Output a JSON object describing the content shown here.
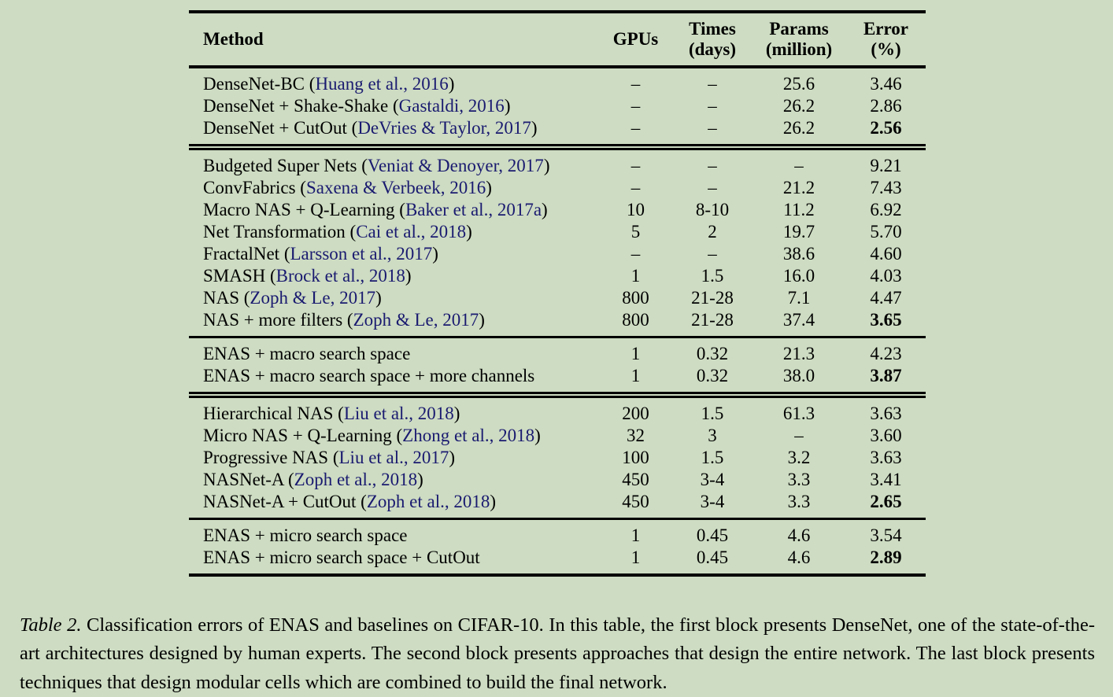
{
  "page": {
    "background_color": "#cddcc2",
    "rule_color": "#000000",
    "citation_color": "#1a1a70"
  },
  "table": {
    "header": {
      "method": "Method",
      "gpus": "GPUs",
      "times_line1": "Times",
      "times_line2": "(days)",
      "params_line1": "Params",
      "params_line2": "(million)",
      "error_line1": "Error",
      "error_line2": "(%)"
    },
    "blocks": [
      {
        "name": "densenet-human-designed",
        "rule_above": "none",
        "rows": [
          {
            "method_prefix": "DenseNet-BC (",
            "citation": "Huang et al., 2016",
            "method_suffix": ")",
            "gpus": "–",
            "times": "–",
            "params": "25.6",
            "error": "3.46",
            "error_bold": false
          },
          {
            "method_prefix": "DenseNet + Shake-Shake (",
            "citation": "Gastaldi, 2016",
            "method_suffix": ")",
            "gpus": "–",
            "times": "–",
            "params": "26.2",
            "error": "2.86",
            "error_bold": false
          },
          {
            "method_prefix": "DenseNet + CutOut (",
            "citation": "DeVries & Taylor, 2017",
            "method_suffix": ")",
            "gpus": "–",
            "times": "–",
            "params": "26.2",
            "error": "2.56",
            "error_bold": true
          }
        ]
      },
      {
        "name": "entire-network-design",
        "rule_above": "double",
        "rows": [
          {
            "method_prefix": "Budgeted Super Nets (",
            "citation": "Veniat & Denoyer, 2017",
            "method_suffix": ")",
            "gpus": "–",
            "times": "–",
            "params": "–",
            "error": "9.21",
            "error_bold": false
          },
          {
            "method_prefix": "ConvFabrics (",
            "citation": "Saxena & Verbeek, 2016",
            "method_suffix": ")",
            "gpus": "–",
            "times": "–",
            "params": "21.2",
            "error": "7.43",
            "error_bold": false
          },
          {
            "method_prefix": "Macro NAS + Q-Learning (",
            "citation": "Baker et al., 2017a",
            "method_suffix": ")",
            "gpus": "10",
            "times": "8-10",
            "params": "11.2",
            "error": "6.92",
            "error_bold": false
          },
          {
            "method_prefix": "Net Transformation (",
            "citation": "Cai et al., 2018",
            "method_suffix": ")",
            "gpus": "5",
            "times": "2",
            "params": "19.7",
            "error": "5.70",
            "error_bold": false
          },
          {
            "method_prefix": "FractalNet (",
            "citation": "Larsson et al., 2017",
            "method_suffix": ")",
            "gpus": "–",
            "times": "–",
            "params": "38.6",
            "error": "4.60",
            "error_bold": false
          },
          {
            "method_prefix": "SMASH (",
            "citation": "Brock et al., 2018",
            "method_suffix": ")",
            "gpus": "1",
            "times": "1.5",
            "params": "16.0",
            "error": "4.03",
            "error_bold": false
          },
          {
            "method_prefix": "NAS (",
            "citation": "Zoph & Le, 2017",
            "method_suffix": ")",
            "gpus": "800",
            "times": "21-28",
            "params": "7.1",
            "error": "4.47",
            "error_bold": false
          },
          {
            "method_prefix": "NAS + more filters (",
            "citation": "Zoph & Le, 2017",
            "method_suffix": ")",
            "gpus": "800",
            "times": "21-28",
            "params": "37.4",
            "error": "3.65",
            "error_bold": true
          }
        ]
      },
      {
        "name": "enas-macro",
        "rule_above": "single",
        "rows": [
          {
            "method_prefix": "ENAS + macro search space",
            "citation": "",
            "method_suffix": "",
            "gpus": "1",
            "times": "0.32",
            "params": "21.3",
            "error": "4.23",
            "error_bold": false
          },
          {
            "method_prefix": "ENAS + macro search space + more channels",
            "citation": "",
            "method_suffix": "",
            "gpus": "1",
            "times": "0.32",
            "params": "38.0",
            "error": "3.87",
            "error_bold": true
          }
        ]
      },
      {
        "name": "cell-design",
        "rule_above": "double",
        "rows": [
          {
            "method_prefix": "Hierarchical NAS (",
            "citation": "Liu et al., 2018",
            "method_suffix": ")",
            "gpus": "200",
            "times": "1.5",
            "params": "61.3",
            "error": "3.63",
            "error_bold": false
          },
          {
            "method_prefix": "Micro NAS + Q-Learning (",
            "citation": "Zhong et al., 2018",
            "method_suffix": ")",
            "gpus": "32",
            "times": "3",
            "params": "–",
            "error": "3.60",
            "error_bold": false
          },
          {
            "method_prefix": "Progressive NAS (",
            "citation": "Liu et al., 2017",
            "method_suffix": ")",
            "gpus": "100",
            "times": "1.5",
            "params": "3.2",
            "error": "3.63",
            "error_bold": false
          },
          {
            "method_prefix": "NASNet-A (",
            "citation": "Zoph et al., 2018",
            "method_suffix": ")",
            "gpus": "450",
            "times": "3-4",
            "params": "3.3",
            "error": "3.41",
            "error_bold": false
          },
          {
            "method_prefix": "NASNet-A + CutOut (",
            "citation": "Zoph et al., 2018",
            "method_suffix": ")",
            "gpus": "450",
            "times": "3-4",
            "params": "3.3",
            "error": "2.65",
            "error_bold": true
          }
        ]
      },
      {
        "name": "enas-micro",
        "rule_above": "single",
        "rows": [
          {
            "method_prefix": "ENAS + micro search space",
            "citation": "",
            "method_suffix": "",
            "gpus": "1",
            "times": "0.45",
            "params": "4.6",
            "error": "3.54",
            "error_bold": false
          },
          {
            "method_prefix": "ENAS + micro search space + CutOut",
            "citation": "",
            "method_suffix": "",
            "gpus": "1",
            "times": "0.45",
            "params": "4.6",
            "error": "2.89",
            "error_bold": true
          }
        ]
      }
    ]
  },
  "caption": {
    "label": "Table 2.",
    "text": "Classification errors of ENAS and baselines on CIFAR-10. In this table, the first block presents DenseNet, one of the state-of-the-art architectures designed by human experts. The second block presents approaches that design the entire network. The last block presents techniques that design modular cells which are combined to build the final network."
  }
}
